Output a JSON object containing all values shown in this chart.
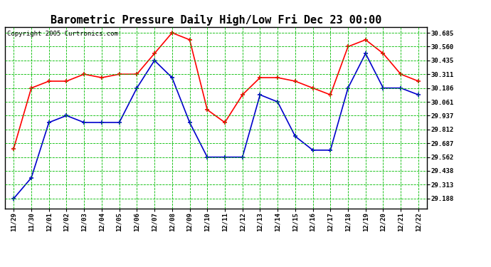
{
  "title": "Barometric Pressure Daily High/Low Fri Dec 23 00:00",
  "copyright": "Copyright 2005 Curtronics.com",
  "labels": [
    "11/29",
    "11/30",
    "12/01",
    "12/02",
    "12/03",
    "12/04",
    "12/05",
    "12/06",
    "12/07",
    "12/08",
    "12/09",
    "12/10",
    "12/11",
    "12/12",
    "12/13",
    "12/14",
    "12/15",
    "12/16",
    "12/17",
    "12/18",
    "12/19",
    "12/20",
    "12/21",
    "12/22"
  ],
  "high_values": [
    29.64,
    30.186,
    30.248,
    30.248,
    30.311,
    30.28,
    30.311,
    30.311,
    30.498,
    30.685,
    30.622,
    29.99,
    29.875,
    30.125,
    30.28,
    30.28,
    30.248,
    30.186,
    30.125,
    30.56,
    30.622,
    30.498,
    30.311,
    30.248
  ],
  "low_values": [
    29.188,
    29.375,
    29.875,
    29.937,
    29.875,
    29.875,
    29.875,
    30.186,
    30.435,
    30.28,
    29.875,
    29.562,
    29.562,
    29.562,
    30.125,
    30.061,
    29.75,
    29.625,
    29.625,
    30.186,
    30.498,
    30.186,
    30.186,
    30.125
  ],
  "high_color": "#ff0000",
  "low_color": "#0000cc",
  "bg_color": "#ffffff",
  "plot_bg_color": "#ffffff",
  "grid_color": "#00bb00",
  "title_fontsize": 11,
  "yticks": [
    29.188,
    29.313,
    29.438,
    29.562,
    29.687,
    29.812,
    29.937,
    30.061,
    30.186,
    30.311,
    30.435,
    30.56,
    30.685
  ],
  "ylim": [
    29.1,
    30.74
  ],
  "marker": "+",
  "markersize": 5,
  "linewidth": 1.2
}
